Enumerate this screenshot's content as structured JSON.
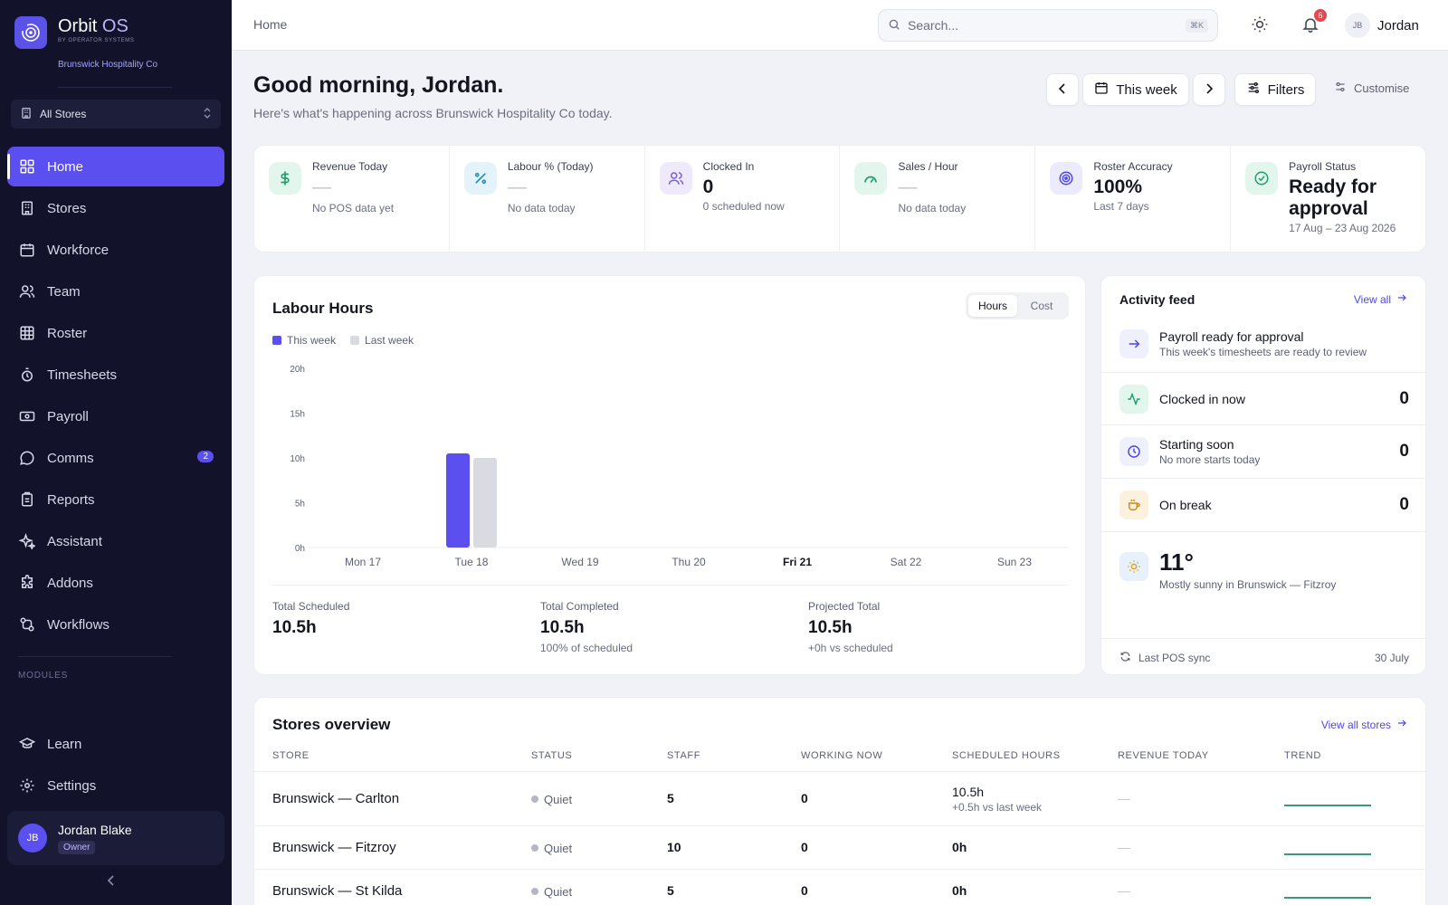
{
  "brand": {
    "name": "Orbit",
    "name_accent": "OS",
    "tagline": "BY OPERATOR SYSTEMS",
    "org": "Brunswick Hospitality Co"
  },
  "sidebar": {
    "store_selector": "All Stores",
    "items": [
      {
        "label": "Home",
        "icon": "home-grid-icon",
        "active": true
      },
      {
        "label": "Stores",
        "icon": "building-icon"
      },
      {
        "label": "Workforce",
        "icon": "calendar-icon"
      },
      {
        "label": "Team",
        "icon": "users-icon"
      },
      {
        "label": "Roster",
        "icon": "grid-icon"
      },
      {
        "label": "Timesheets",
        "icon": "stopwatch-icon"
      },
      {
        "label": "Payroll",
        "icon": "banknote-icon"
      },
      {
        "label": "Comms",
        "icon": "chat-icon",
        "badge": "2"
      },
      {
        "label": "Reports",
        "icon": "clipboard-icon"
      },
      {
        "label": "Assistant",
        "icon": "sparkles-icon"
      },
      {
        "label": "Addons",
        "icon": "puzzle-icon"
      },
      {
        "label": "Workflows",
        "icon": "workflow-icon"
      }
    ],
    "modules_label": "MODULES",
    "bottom_items": [
      {
        "label": "Learn",
        "icon": "graduation-cap-icon"
      },
      {
        "label": "Settings",
        "icon": "gear-icon"
      }
    ],
    "user": {
      "initials": "JB",
      "name": "Jordan Blake",
      "role": "Owner"
    }
  },
  "topbar": {
    "breadcrumb": "Home",
    "search_placeholder": "Search...",
    "search_shortcut": "⌘K",
    "notification_count": "6",
    "user_initials": "JB",
    "user_name": "Jordan"
  },
  "header": {
    "greeting": "Good morning, Jordan.",
    "subtitle": "Here's what's happening across Brunswick Hospitality Co today.",
    "period": "This week",
    "filters": "Filters",
    "customise": "Customise"
  },
  "kpis": [
    {
      "label": "Revenue Today",
      "value": "—",
      "sub": "No POS data yet",
      "icon": "dollar-icon",
      "color": "#1f9d6b",
      "bg": "#e3f6ee"
    },
    {
      "label": "Labour % (Today)",
      "value": "—",
      "sub": "No data today",
      "icon": "percent-icon",
      "color": "#2a8fbd",
      "bg": "#e4f3fa"
    },
    {
      "label": "Clocked In",
      "value": "0",
      "sub": "0 scheduled now",
      "icon": "users-icon",
      "color": "#7c5cd6",
      "bg": "#efeafb"
    },
    {
      "label": "Sales / Hour",
      "value": "—",
      "sub": "No data today",
      "icon": "gauge-icon",
      "color": "#1f9d6b",
      "bg": "#e3f6ee"
    },
    {
      "label": "Roster Accuracy",
      "value": "100%",
      "sub": "Last 7 days",
      "icon": "target-icon",
      "color": "#4f46e5",
      "bg": "#eceafd"
    },
    {
      "label": "Payroll Status",
      "value": "Ready for approval",
      "sub": "17 Aug – 23 Aug 2026",
      "icon": "check-circle-icon",
      "color": "#1f9d6b",
      "bg": "#e3f6ee"
    }
  ],
  "labour": {
    "title": "Labour Hours",
    "toggle": [
      "Hours",
      "Cost"
    ],
    "active_toggle": "Hours",
    "totals": [
      {
        "label": "Total Scheduled",
        "value": "10.5h",
        "sub": ""
      },
      {
        "label": "Total Completed",
        "value": "10.5h",
        "sub": "100% of scheduled"
      },
      {
        "label": "Projected Total",
        "value": "10.5h",
        "sub": "+0h vs scheduled"
      }
    ]
  },
  "chart_data": {
    "type": "bar",
    "categories": [
      "Mon 17",
      "Tue 18",
      "Wed 19",
      "Thu 20",
      "Fri 21",
      "Sat 22",
      "Sun 23"
    ],
    "highlight_category": "Fri 21",
    "series": [
      {
        "name": "This week",
        "color": "#5b4ff0",
        "values": [
          0,
          10.5,
          0,
          0,
          0,
          0,
          0
        ]
      },
      {
        "name": "Last week",
        "color": "#d9dbe1",
        "values": [
          0,
          10,
          0,
          0,
          0,
          0,
          0
        ]
      }
    ],
    "yticks": [
      "0h",
      "5h",
      "10h",
      "15h",
      "20h"
    ],
    "ylim": [
      0,
      20
    ],
    "legend": "top-left",
    "grid": false
  },
  "activity": {
    "title": "Activity feed",
    "view_all": "View all",
    "items": [
      {
        "title": "Payroll ready for approval",
        "sub": "This week's timesheets are ready to review",
        "icon": "arrow-right-icon",
        "color": "#4f46e5",
        "bg": "#eef0fb"
      },
      {
        "title": "Clocked in now",
        "count": "0",
        "icon": "activity-icon",
        "color": "#1f9d6b",
        "bg": "#e3f6ee"
      },
      {
        "title": "Starting soon",
        "sub": "No more starts today",
        "count": "0",
        "icon": "clock-icon",
        "color": "#4f46e5",
        "bg": "#eef0fb"
      },
      {
        "title": "On break",
        "count": "0",
        "icon": "coffee-icon",
        "color": "#c98a1a",
        "bg": "#fcf1dc"
      }
    ],
    "weather": {
      "temp": "11°",
      "desc": "Mostly sunny in Brunswick — Fitzroy",
      "icon": "sun-icon"
    },
    "footer_label": "Last POS sync",
    "footer_value": "30 July"
  },
  "stores": {
    "title": "Stores overview",
    "view_all": "View all stores",
    "columns": [
      "STORE",
      "STATUS",
      "STAFF",
      "WORKING NOW",
      "SCHEDULED HOURS",
      "REVENUE TODAY",
      "TREND"
    ],
    "rows": [
      {
        "store": "Brunswick — Carlton",
        "status": "Quiet",
        "staff": "5",
        "working": "0",
        "hours": "10.5h",
        "hours_sub": "+0.5h vs last week",
        "revenue": "—"
      },
      {
        "store": "Brunswick — Fitzroy",
        "status": "Quiet",
        "staff": "10",
        "working": "0",
        "hours": "0h",
        "hours_sub": "",
        "revenue": "—"
      },
      {
        "store": "Brunswick — St Kilda",
        "status": "Quiet",
        "staff": "5",
        "working": "0",
        "hours": "0h",
        "hours_sub": "",
        "revenue": "—"
      }
    ]
  }
}
